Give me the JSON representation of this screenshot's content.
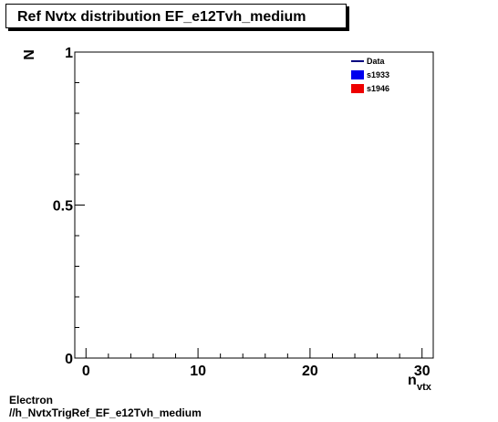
{
  "chart_data": {
    "type": "line",
    "title": "Ref Nvtx distribution EF_e12Tvh_medium",
    "xlabel": "n",
    "xlabel_sub": "vtx",
    "ylabel": "N",
    "xlim": [
      -1,
      31
    ],
    "ylim": [
      0,
      1
    ],
    "x_ticks": [
      0,
      10,
      20,
      30
    ],
    "y_ticks": [
      0,
      0.5,
      1
    ],
    "grid": false,
    "legend_position": "top-right",
    "legend": [
      {
        "name": "Data",
        "style": "line",
        "color": "#000080"
      },
      {
        "name": "s1933",
        "style": "box",
        "color": "#0000ee"
      },
      {
        "name": "s1946",
        "style": "box",
        "color": "#ee0000"
      }
    ],
    "series": []
  },
  "footer": {
    "line1": "Electron",
    "line2": "//h_NvtxTrigRef_EF_e12Tvh_medium"
  }
}
